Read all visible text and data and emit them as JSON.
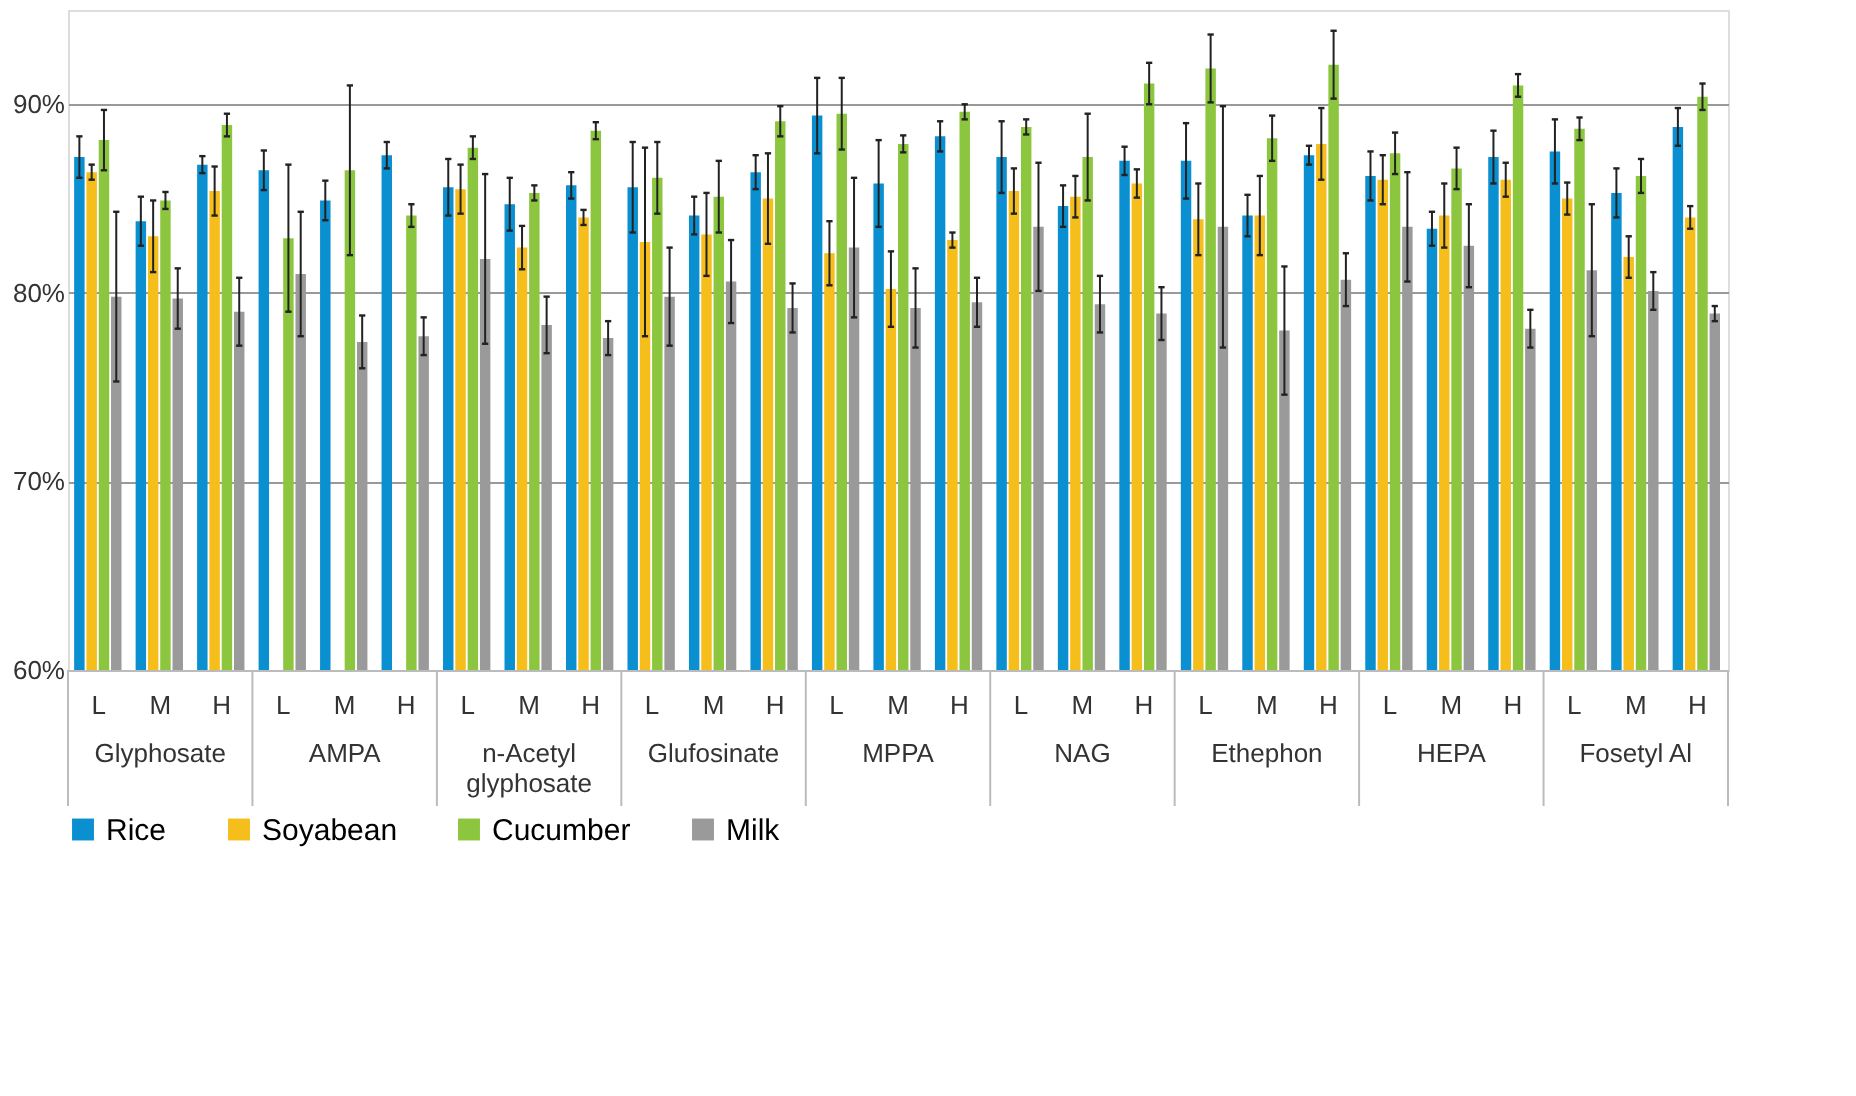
{
  "chart_data": {
    "type": "bar",
    "categories": [
      "L",
      "M",
      "H",
      "L",
      "M",
      "H",
      "L",
      "M",
      "H",
      "L",
      "M",
      "H",
      "L",
      "M",
      "H",
      "L",
      "M",
      "H",
      "L",
      "M",
      "H",
      "L",
      "M",
      "H",
      "L",
      "M",
      "H"
    ],
    "annotations": [
      "Glyphosate",
      "AMPA",
      "n-Acetyl\nglyphosate",
      "Glufosinate",
      "MPPA",
      "NAG",
      "Ethephon",
      "HEPA",
      "Fosetyl Al"
    ],
    "series": [
      {
        "name": "Rice",
        "color": "#0a8fd1",
        "values": [
          87.2,
          83.8,
          86.8,
          86.5,
          84.9,
          87.3,
          85.6,
          84.7,
          85.7,
          85.6,
          84.1,
          86.4,
          89.4,
          85.8,
          88.3,
          87.2,
          84.6,
          87.0,
          87.0,
          84.1,
          87.3,
          86.2,
          83.4,
          87.2,
          87.5,
          85.3,
          88.8
        ],
        "errors": [
          1.1,
          1.3,
          0.45,
          1.05,
          1.05,
          0.7,
          1.5,
          1.4,
          0.7,
          2.4,
          1.0,
          0.9,
          2.0,
          2.3,
          0.8,
          1.9,
          1.1,
          0.75,
          2.0,
          1.1,
          0.5,
          1.3,
          0.9,
          1.4,
          1.7,
          1.3,
          1.0
        ]
      },
      {
        "name": "Soyabean",
        "color": "#f5be1a",
        "values": [
          86.4,
          83.0,
          85.4,
          null,
          null,
          null,
          85.5,
          82.4,
          84.0,
          82.7,
          83.1,
          85.0,
          82.1,
          80.2,
          82.8,
          85.4,
          85.1,
          85.8,
          83.9,
          84.1,
          87.9,
          86.0,
          84.1,
          86.0,
          85.0,
          81.9,
          84.0
        ],
        "errors": [
          0.4,
          1.9,
          1.3,
          null,
          null,
          null,
          1.3,
          1.15,
          0.4,
          5.0,
          2.2,
          2.4,
          1.7,
          2.0,
          0.4,
          1.2,
          1.1,
          0.75,
          1.9,
          2.1,
          1.9,
          1.3,
          1.7,
          0.9,
          0.85,
          1.1,
          0.6
        ]
      },
      {
        "name": "Cucumber",
        "color": "#8cc63f",
        "values": [
          88.1,
          84.9,
          88.9,
          82.9,
          86.5,
          84.1,
          87.7,
          85.3,
          88.6,
          86.1,
          85.1,
          89.1,
          89.5,
          87.9,
          89.6,
          88.8,
          87.2,
          91.1,
          91.9,
          88.2,
          92.1,
          87.4,
          86.6,
          91.0,
          88.7,
          86.2,
          90.4
        ],
        "errors": [
          1.6,
          0.45,
          0.6,
          3.9,
          4.5,
          0.6,
          0.6,
          0.4,
          0.45,
          1.9,
          1.9,
          0.8,
          1.9,
          0.45,
          0.4,
          0.4,
          2.3,
          1.1,
          1.8,
          1.2,
          1.8,
          1.1,
          1.1,
          0.6,
          0.6,
          0.9,
          0.7
        ]
      },
      {
        "name": "Milk",
        "color": "#9a9a9a",
        "values": [
          79.8,
          79.7,
          79.0,
          81.0,
          77.4,
          77.7,
          81.8,
          78.3,
          77.6,
          79.8,
          80.6,
          79.2,
          82.4,
          79.2,
          79.5,
          83.5,
          79.4,
          78.9,
          83.5,
          78.0,
          80.7,
          83.5,
          82.5,
          78.1,
          81.2,
          80.1,
          78.9
        ],
        "errors": [
          4.5,
          1.6,
          1.8,
          3.3,
          1.4,
          1.0,
          4.5,
          1.5,
          0.9,
          2.6,
          2.2,
          1.3,
          3.7,
          2.1,
          1.3,
          3.4,
          1.5,
          1.4,
          6.4,
          3.4,
          1.4,
          2.9,
          2.2,
          1.0,
          3.5,
          1.0,
          0.4
        ]
      }
    ],
    "ylim": [
      60,
      95
    ],
    "yticks": [
      {
        "value": 60,
        "label": "60%"
      },
      {
        "value": 70,
        "label": "70%"
      },
      {
        "value": 80,
        "label": "80%"
      },
      {
        "value": 90,
        "label": "90%"
      }
    ],
    "grid": "y",
    "legend": "bottom"
  }
}
